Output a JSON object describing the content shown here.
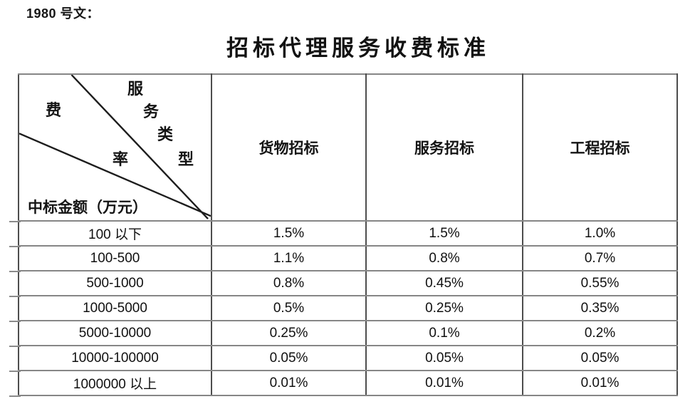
{
  "doc_label": "1980 号文：",
  "title": "招标代理服务收费标准",
  "table": {
    "diagonal_header": {
      "service_type_chars": [
        "服",
        "务",
        "类",
        "型"
      ],
      "fee_rate_chars": [
        "费",
        "率"
      ],
      "amount_label": "中标金额（万元）"
    },
    "columns": [
      "货物招标",
      "服务招标",
      "工程招标"
    ],
    "rows": [
      {
        "range": "100 以下",
        "values": [
          "1.5%",
          "1.5%",
          "1.0%"
        ]
      },
      {
        "range": "100-500",
        "values": [
          "1.1%",
          "0.8%",
          "0.7%"
        ]
      },
      {
        "range": "500-1000",
        "values": [
          "0.8%",
          "0.45%",
          "0.55%"
        ]
      },
      {
        "range": "1000-5000",
        "values": [
          "0.5%",
          "0.25%",
          "0.35%"
        ]
      },
      {
        "range": "5000-10000",
        "values": [
          "0.25%",
          "0.1%",
          "0.2%"
        ]
      },
      {
        "range": "10000-100000",
        "values": [
          "0.05%",
          "0.05%",
          "0.05%"
        ]
      },
      {
        "range": "1000000 以上",
        "values": [
          "0.01%",
          "0.01%",
          "0.01%"
        ]
      }
    ]
  },
  "colors": {
    "text": "#141414",
    "h_border": "#868686",
    "v_border": "#4d4d4d"
  }
}
